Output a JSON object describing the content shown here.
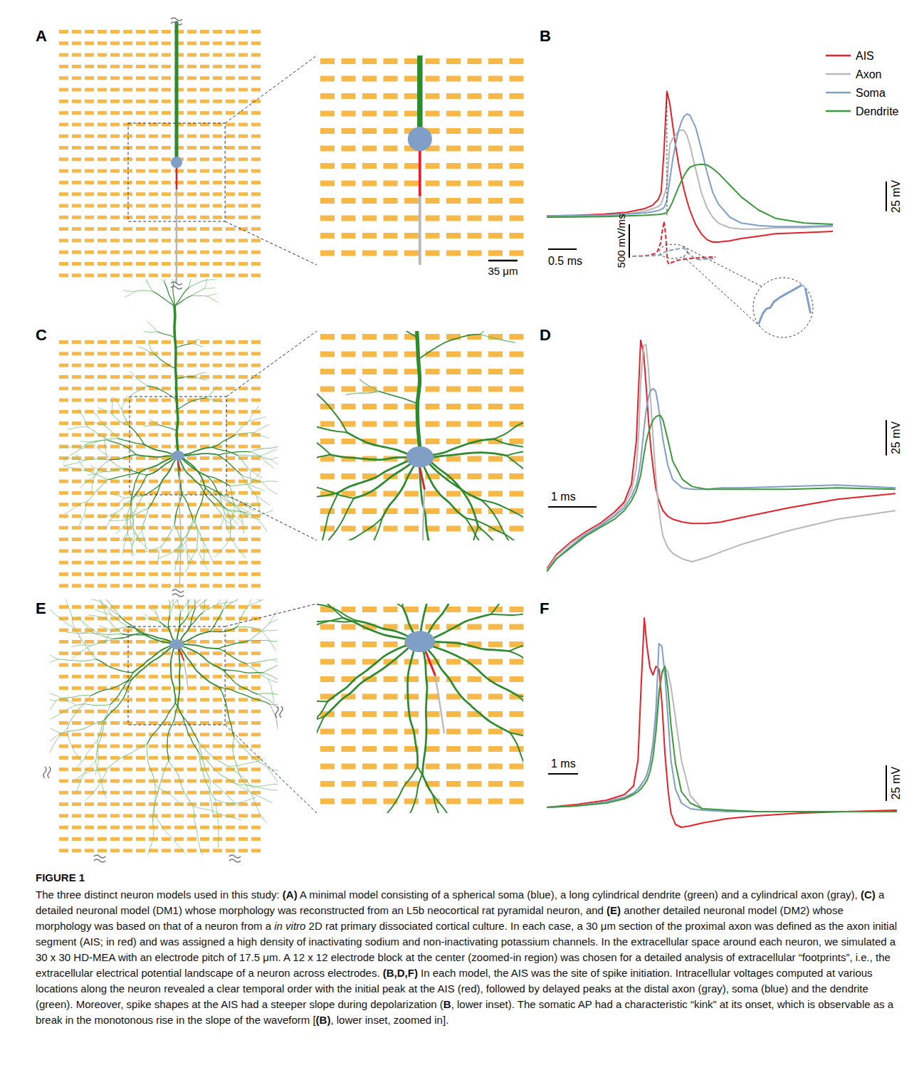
{
  "panel_labels": [
    "A",
    "B",
    "C",
    "D",
    "E",
    "F"
  ],
  "morphology": {
    "scale_bar": {
      "value": 35,
      "label": "35 μm"
    }
  },
  "chart_data": [
    {
      "type": "line",
      "legend": "upper right",
      "tick_labels": false,
      "x": [
        0,
        0.5,
        1.0,
        1.4,
        1.7,
        1.85,
        1.95,
        2.0,
        2.05,
        2.1,
        2.15,
        2.2,
        2.25,
        2.3,
        2.35,
        2.4,
        2.45,
        2.5,
        2.6,
        2.7,
        2.8,
        2.9,
        3.0,
        3.2,
        3.4,
        3.7,
        4.0,
        4.5,
        5.0
      ],
      "xlim": [
        0,
        5
      ],
      "ylim": [
        -90,
        45
      ],
      "scale_bars": {
        "x": {
          "value": 0.5,
          "label": "0.5 ms"
        },
        "y": {
          "value": 25,
          "label": "25 mV"
        }
      },
      "series": [
        {
          "name": "AIS",
          "color": "#e4222b",
          "values": [
            -65,
            -64.5,
            -63.5,
            -62,
            -59,
            -56,
            -51,
            -45,
            -10,
            40,
            30,
            12,
            -5,
            -20,
            -32,
            -43,
            -52,
            -60,
            -72,
            -80,
            -85,
            -87,
            -87,
            -86,
            -84,
            -82,
            -80,
            -79,
            -78
          ]
        },
        {
          "name": "Axon",
          "color": "#b8b8b8",
          "values": [
            -66,
            -65.5,
            -64.8,
            -63.5,
            -61,
            -59,
            -57,
            -55,
            -48,
            -40,
            -5,
            0,
            3,
            6,
            7.5,
            7,
            3,
            -5,
            -25,
            -45,
            -58,
            -66,
            -71,
            -75,
            -76,
            -76,
            -75,
            -75,
            -74
          ]
        },
        {
          "name": "Soma",
          "color": "#7f9fc6",
          "values": [
            -65,
            -64.7,
            -64.2,
            -63.5,
            -62.5,
            -61.5,
            -60.5,
            -59.5,
            -58,
            -52,
            -35,
            -18,
            -5,
            6,
            14,
            19,
            21,
            20,
            10,
            -8,
            -28,
            -45,
            -55,
            -66,
            -71,
            -73,
            -74,
            -74,
            -73
          ]
        },
        {
          "name": "Dendrite",
          "color": "#3c9a3c",
          "values": [
            -66,
            -65.8,
            -65.5,
            -65,
            -64.5,
            -64,
            -63.8,
            -63.5,
            -63,
            -62,
            -58,
            -53,
            -47,
            -41,
            -36,
            -31,
            -27,
            -24,
            -22,
            -21.5,
            -22,
            -25,
            -29,
            -39,
            -49,
            -60,
            -67,
            -71,
            -72
          ]
        }
      ]
    },
    {
      "type": "line",
      "tick_labels": false,
      "x": [
        1.5,
        1.7,
        1.8,
        1.9,
        1.95,
        2.0,
        2.03,
        2.06,
        2.09,
        2.12,
        2.15,
        2.2,
        2.3,
        2.4,
        2.5,
        2.6,
        2.7,
        2.8,
        2.96
      ],
      "xlim": [
        1.5,
        2.96
      ],
      "ylim": [
        -160,
        585
      ],
      "scale_bars": {
        "y": {
          "value": 500,
          "label": "500 mV/ms"
        }
      },
      "series": [
        {
          "name": "AIS",
          "color": "#e4222b",
          "line_style": "dashed",
          "values": [
            0,
            5,
            15,
            40,
            80,
            200,
            380,
            520,
            300,
            -80,
            -120,
            -90,
            -60,
            -45,
            -35,
            -28,
            -20,
            -15,
            -10
          ]
        },
        {
          "name": "Soma",
          "color": "#7f9fc6",
          "line_style": "dashed",
          "values": [
            0,
            3,
            6,
            10,
            14,
            20,
            40,
            60,
            70,
            72,
            85,
            95,
            110,
            125,
            40,
            -40,
            -50,
            -40,
            -30
          ]
        }
      ]
    },
    {
      "type": "line",
      "tick_labels": false,
      "x": [
        2.0,
        2.06,
        2.09,
        2.12,
        2.15,
        2.2,
        2.3,
        2.4,
        2.45
      ],
      "xlim": [
        1.98,
        2.47
      ],
      "ylim": [
        10,
        135
      ],
      "series": [
        {
          "name": "Soma",
          "color": "#7f9fc6",
          "line_style": "solid",
          "values": [
            20,
            60,
            70,
            72,
            85,
            95,
            110,
            125,
            60
          ]
        }
      ]
    },
    {
      "type": "line",
      "tick_labels": false,
      "x": [
        0,
        0.2,
        0.5,
        0.8,
        1.1,
        1.4,
        1.6,
        1.75,
        1.85,
        1.9,
        1.94,
        2.0,
        2.05,
        2.1,
        2.15,
        2.2,
        2.25,
        2.3,
        2.35,
        2.4,
        2.5,
        2.6,
        2.8,
        3.0,
        3.3,
        3.6,
        4.0,
        5.0,
        6.0,
        7.2
      ],
      "xlim": [
        0,
        7.2
      ],
      "ylim": [
        -124,
        44
      ],
      "scale_bars": {
        "x": {
          "value": 1,
          "label": "1 ms"
        },
        "y": {
          "value": 25,
          "label": "25 mV"
        }
      },
      "series": [
        {
          "name": "AIS",
          "color": "#e4222b",
          "values": [
            -121,
            -111,
            -102,
            -95,
            -89,
            -81,
            -74,
            -61,
            -31,
            9,
            40,
            31,
            9,
            -16,
            -36,
            -51,
            -64,
            -71,
            -76,
            -80,
            -84,
            -86,
            -88,
            -89,
            -89,
            -88,
            -85,
            -78,
            -72,
            -68
          ]
        },
        {
          "name": "Axon",
          "color": "#b8b8b8",
          "values": [
            -122,
            -112,
            -103,
            -96,
            -90,
            -83,
            -76,
            -66,
            -50,
            -25,
            10,
            36,
            37,
            20,
            -5,
            -30,
            -55,
            -75,
            -88,
            -98,
            -106,
            -110,
            -114,
            -116,
            -113,
            -109,
            -104,
            -94,
            -86,
            -80
          ]
        },
        {
          "name": "Soma",
          "color": "#7f9fc6",
          "values": [
            -123,
            -114,
            -105,
            -97,
            -91,
            -84,
            -78,
            -70,
            -62,
            -54,
            -45,
            -25,
            -10,
            0,
            5,
            6,
            4,
            -5,
            -18,
            -30,
            -48,
            -58,
            -64,
            -65,
            -65,
            -64,
            -64,
            -63,
            -62,
            -64
          ]
        },
        {
          "name": "Dendrite",
          "color": "#3c9a3c",
          "values": [
            -123,
            -114,
            -106,
            -98,
            -92,
            -86,
            -80,
            -73,
            -66,
            -60,
            -55,
            -42,
            -32,
            -25,
            -20,
            -16,
            -14,
            -13,
            -13,
            -16,
            -30,
            -45,
            -58,
            -63,
            -65,
            -65,
            -65,
            -65,
            -64,
            -65
          ]
        }
      ]
    },
    {
      "type": "line",
      "tick_labels": false,
      "x": [
        0,
        1,
        2,
        2.6,
        2.9,
        3.05,
        3.15,
        3.26,
        3.35,
        3.45,
        3.55,
        3.65,
        3.75,
        3.85,
        3.95,
        4.05,
        4.15,
        4.3,
        4.5,
        4.8,
        5.2,
        6,
        7,
        8.5,
        10,
        11.7
      ],
      "xlim": [
        0,
        11.7
      ],
      "ylim": [
        -112,
        44
      ],
      "scale_bars": {
        "x": {
          "value": 1,
          "label": "1 ms"
        },
        "y": {
          "value": 25,
          "label": "25 mV"
        }
      },
      "series": [
        {
          "name": "AIS",
          "color": "#e4222b",
          "values": [
            -93,
            -91,
            -88,
            -84,
            -78,
            -60,
            -10,
            40,
            20,
            5,
            0,
            6,
            4,
            -20,
            -55,
            -80,
            -97,
            -105,
            -107,
            -106,
            -104,
            -101,
            -99,
            -97,
            -96,
            -95
          ]
        },
        {
          "name": "Axon",
          "color": "#b8b8b8",
          "values": [
            -93,
            -92,
            -89,
            -86,
            -83,
            -80,
            -78,
            -74,
            -70,
            -62,
            -50,
            -30,
            -10,
            0,
            5,
            2,
            -8,
            -30,
            -60,
            -85,
            -94,
            -95,
            -96,
            -96,
            -96,
            -96
          ]
        },
        {
          "name": "Soma",
          "color": "#7f9fc6",
          "values": [
            -93,
            -92,
            -89,
            -86,
            -83,
            -80,
            -77,
            -74,
            -70,
            -62,
            -48,
            -25,
            22,
            20,
            0,
            -30,
            -60,
            -80,
            -90,
            -94,
            -95,
            -96,
            -96,
            -96,
            -96,
            -96
          ]
        },
        {
          "name": "Dendrite",
          "color": "#3c9a3c",
          "values": [
            -93,
            -92,
            -90,
            -87,
            -84,
            -82,
            -80,
            -77,
            -74,
            -68,
            -58,
            -40,
            -15,
            2,
            6,
            -10,
            -35,
            -62,
            -82,
            -90,
            -94,
            -95,
            -96,
            -96,
            -96,
            -96
          ]
        }
      ]
    }
  ],
  "caption": {
    "label": "FIGURE 1",
    "segments": [
      {
        "text": "The three distinct neuron models used in this study: ",
        "style": "normal"
      },
      {
        "text": "(A)",
        "style": "bold"
      },
      {
        "text": " A minimal model consisting of a spherical soma (blue), a long cylindrical dendrite (green) and a cylindrical axon (gray), ",
        "style": "normal"
      },
      {
        "text": "(C)",
        "style": "bold"
      },
      {
        "text": " a detailed neuronal model (DM1) whose morphology was reconstructed from an L5b neocortical rat pyramidal neuron, and ",
        "style": "normal"
      },
      {
        "text": "(E)",
        "style": "bold"
      },
      {
        "text": " another detailed neuronal model (DM2) whose morphology was based on that of a neuron from a ",
        "style": "normal"
      },
      {
        "text": "in vitro",
        "style": "italic"
      },
      {
        "text": " 2D rat primary dissociated cortical culture. In each case, a 30 μm section of the proximal axon was defined as the axon initial segment (AIS; in red) and was assigned a high density of inactivating sodium and non-inactivating potassium channels. In the extracellular space around each neuron, we simulated a 30 x 30 HD-MEA with an electrode pitch of 17.5 μm. A 12 x 12 electrode block at the center (zoomed-in region) was chosen for a detailed analysis of extracellular “footprints”, i.e., the extracellular electrical potential landscape of a neuron across electrodes. ",
        "style": "normal"
      },
      {
        "text": "(B,D,F)",
        "style": "bold"
      },
      {
        "text": " In each model, the AIS was the site of spike initiation. Intracellular voltages computed at various locations along the neuron revealed a clear temporal order with the initial peak at the AIS (red), followed by delayed peaks at the distal axon (gray), soma (blue) and the dendrite (green). Moreover, spike shapes at the AIS had a steeper slope during depolarization (",
        "style": "normal"
      },
      {
        "text": "B",
        "style": "bold"
      },
      {
        "text": ", lower inset). The somatic AP had a characteristic “kink” at its onset, which is observable as a break in the monotonous rise in the slope of the waveform [",
        "style": "normal"
      },
      {
        "text": "(B)",
        "style": "bold"
      },
      {
        "text": ", lower inset, zoomed in].",
        "style": "normal"
      }
    ]
  }
}
